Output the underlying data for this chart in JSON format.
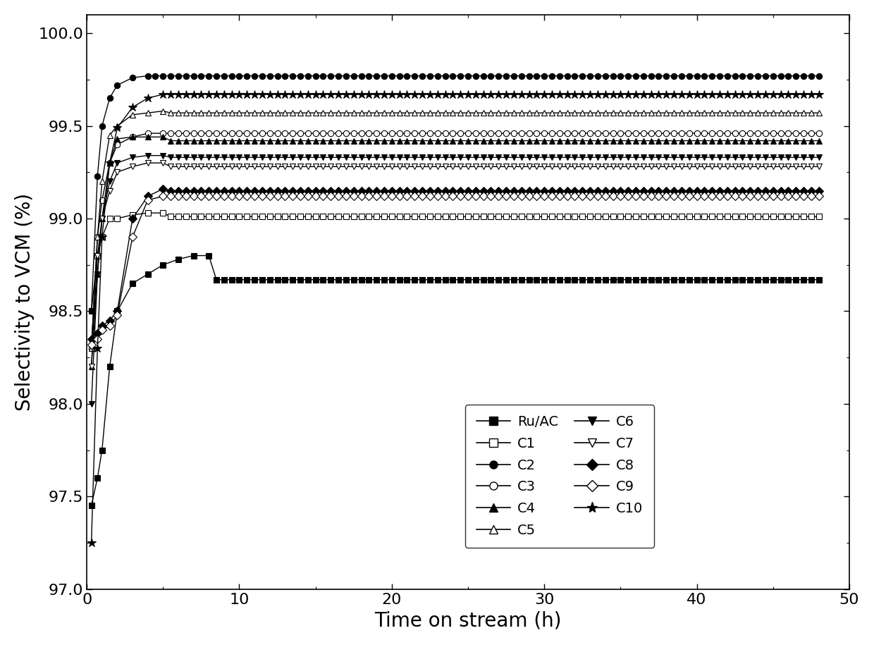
{
  "title": "",
  "xlabel": "Time on stream (h)",
  "ylabel": "Selectivity to VCM (%)",
  "xlim": [
    0,
    50
  ],
  "ylim": [
    97.0,
    100.1
  ],
  "yticks": [
    97.0,
    97.5,
    98.0,
    98.5,
    99.0,
    99.5,
    100.0
  ],
  "xticks": [
    0,
    10,
    20,
    30,
    40,
    50
  ],
  "background_color": "#ffffff",
  "linewidth": 1.0,
  "markersize": 6,
  "series": [
    {
      "name": "Ru/AC",
      "marker": "s",
      "filled": true,
      "x_rise": [
        0.3,
        0.7,
        1.0,
        1.5,
        2.0,
        3.0,
        4.0,
        5.0,
        6.0,
        7.0,
        8.0
      ],
      "y_rise": [
        97.45,
        97.6,
        97.75,
        98.2,
        98.5,
        98.65,
        98.7,
        98.75,
        98.78,
        98.8,
        98.8
      ],
      "x_flat_start": 8.0,
      "x_flat_end": 48.0,
      "y_flat": 98.67,
      "flat_step": 0.5
    },
    {
      "name": "C1",
      "marker": "s",
      "filled": false,
      "x_rise": [
        0.3,
        0.7,
        1.0,
        1.5,
        2.0,
        3.0,
        4.0,
        5.0
      ],
      "y_rise": [
        98.5,
        98.8,
        98.9,
        99.0,
        99.0,
        99.02,
        99.03,
        99.03
      ],
      "x_flat_start": 5.0,
      "x_flat_end": 48.0,
      "y_flat": 99.01,
      "flat_step": 0.5
    },
    {
      "name": "C2",
      "marker": "o",
      "filled": true,
      "x_rise": [
        0.3,
        0.7,
        1.0,
        1.5,
        2.0,
        3.0,
        4.0
      ],
      "y_rise": [
        98.5,
        99.23,
        99.5,
        99.65,
        99.72,
        99.76,
        99.77
      ],
      "x_flat_start": 4.0,
      "x_flat_end": 48.0,
      "y_flat": 99.77,
      "flat_step": 0.5
    },
    {
      "name": "C3",
      "marker": "o",
      "filled": false,
      "x_rise": [
        0.3,
        0.7,
        1.0,
        1.5,
        2.0,
        3.0,
        4.0,
        5.0
      ],
      "y_rise": [
        98.3,
        98.9,
        99.1,
        99.3,
        99.4,
        99.44,
        99.46,
        99.46
      ],
      "x_flat_start": 5.0,
      "x_flat_end": 48.0,
      "y_flat": 99.46,
      "flat_step": 0.5
    },
    {
      "name": "C4",
      "marker": "^",
      "filled": true,
      "x_rise": [
        0.3,
        0.7,
        1.0,
        1.5,
        2.0,
        3.0,
        4.0,
        5.0
      ],
      "y_rise": [
        98.2,
        98.7,
        99.0,
        99.3,
        99.43,
        99.44,
        99.44,
        99.44
      ],
      "x_flat_start": 5.0,
      "x_flat_end": 48.0,
      "y_flat": 99.42,
      "flat_step": 0.5
    },
    {
      "name": "C5",
      "marker": "^",
      "filled": false,
      "x_rise": [
        0.3,
        0.7,
        1.0,
        1.5,
        2.0,
        3.0,
        4.0,
        5.0
      ],
      "y_rise": [
        98.3,
        98.9,
        99.2,
        99.45,
        99.5,
        99.56,
        99.57,
        99.58
      ],
      "x_flat_start": 5.0,
      "x_flat_end": 48.0,
      "y_flat": 99.57,
      "flat_step": 0.5
    },
    {
      "name": "C6",
      "marker": "v",
      "filled": true,
      "x_rise": [
        0.3,
        0.7,
        1.0,
        1.5,
        2.0,
        3.0,
        4.0,
        5.0
      ],
      "y_rise": [
        98.0,
        98.7,
        99.0,
        99.2,
        99.3,
        99.33,
        99.34,
        99.34
      ],
      "x_flat_start": 5.0,
      "x_flat_end": 48.0,
      "y_flat": 99.33,
      "flat_step": 0.5
    },
    {
      "name": "C7",
      "marker": "v",
      "filled": false,
      "x_rise": [
        0.3,
        0.7,
        1.0,
        1.5,
        2.0,
        3.0,
        4.0,
        5.0
      ],
      "y_rise": [
        98.2,
        98.8,
        99.0,
        99.15,
        99.25,
        99.28,
        99.3,
        99.3
      ],
      "x_flat_start": 5.0,
      "x_flat_end": 48.0,
      "y_flat": 99.28,
      "flat_step": 0.5
    },
    {
      "name": "C8",
      "marker": "D",
      "filled": true,
      "x_rise": [
        0.3,
        0.7,
        1.0,
        1.5,
        2.0,
        3.0,
        4.0,
        5.0
      ],
      "y_rise": [
        98.35,
        98.38,
        98.42,
        98.45,
        98.5,
        99.0,
        99.12,
        99.16
      ],
      "x_flat_start": 5.0,
      "x_flat_end": 48.0,
      "y_flat": 99.15,
      "flat_step": 0.5
    },
    {
      "name": "C9",
      "marker": "D",
      "filled": false,
      "x_rise": [
        0.3,
        0.7,
        1.0,
        1.5,
        2.0,
        3.0,
        4.0,
        5.0
      ],
      "y_rise": [
        98.32,
        98.35,
        98.4,
        98.42,
        98.48,
        98.9,
        99.1,
        99.12
      ],
      "x_flat_start": 5.0,
      "x_flat_end": 48.0,
      "y_flat": 99.12,
      "flat_step": 0.5
    },
    {
      "name": "C10",
      "marker": "*",
      "filled": true,
      "x_rise": [
        0.3,
        0.7,
        1.0,
        1.5,
        2.0,
        3.0,
        4.0,
        5.0
      ],
      "y_rise": [
        97.25,
        98.3,
        98.9,
        99.3,
        99.49,
        99.6,
        99.65,
        99.67
      ],
      "x_flat_start": 5.0,
      "x_flat_end": 48.0,
      "y_flat": 99.67,
      "flat_step": 0.5
    }
  ],
  "legend_col1": [
    {
      "name": "Ru/AC",
      "marker": "s",
      "filled": true
    },
    {
      "name": "C2",
      "marker": "o",
      "filled": true
    },
    {
      "name": "C4",
      "marker": "^",
      "filled": true
    },
    {
      "name": "C6",
      "marker": "v",
      "filled": true
    },
    {
      "name": "C8",
      "marker": "D",
      "filled": true
    },
    {
      "name": "C10",
      "marker": "*",
      "filled": true
    }
  ],
  "legend_col2": [
    {
      "name": "C1",
      "marker": "s",
      "filled": false
    },
    {
      "name": "C3",
      "marker": "o",
      "filled": false
    },
    {
      "name": "C5",
      "marker": "^",
      "filled": false
    },
    {
      "name": "C7",
      "marker": "v",
      "filled": false
    },
    {
      "name": "C9",
      "marker": "D",
      "filled": false
    }
  ]
}
